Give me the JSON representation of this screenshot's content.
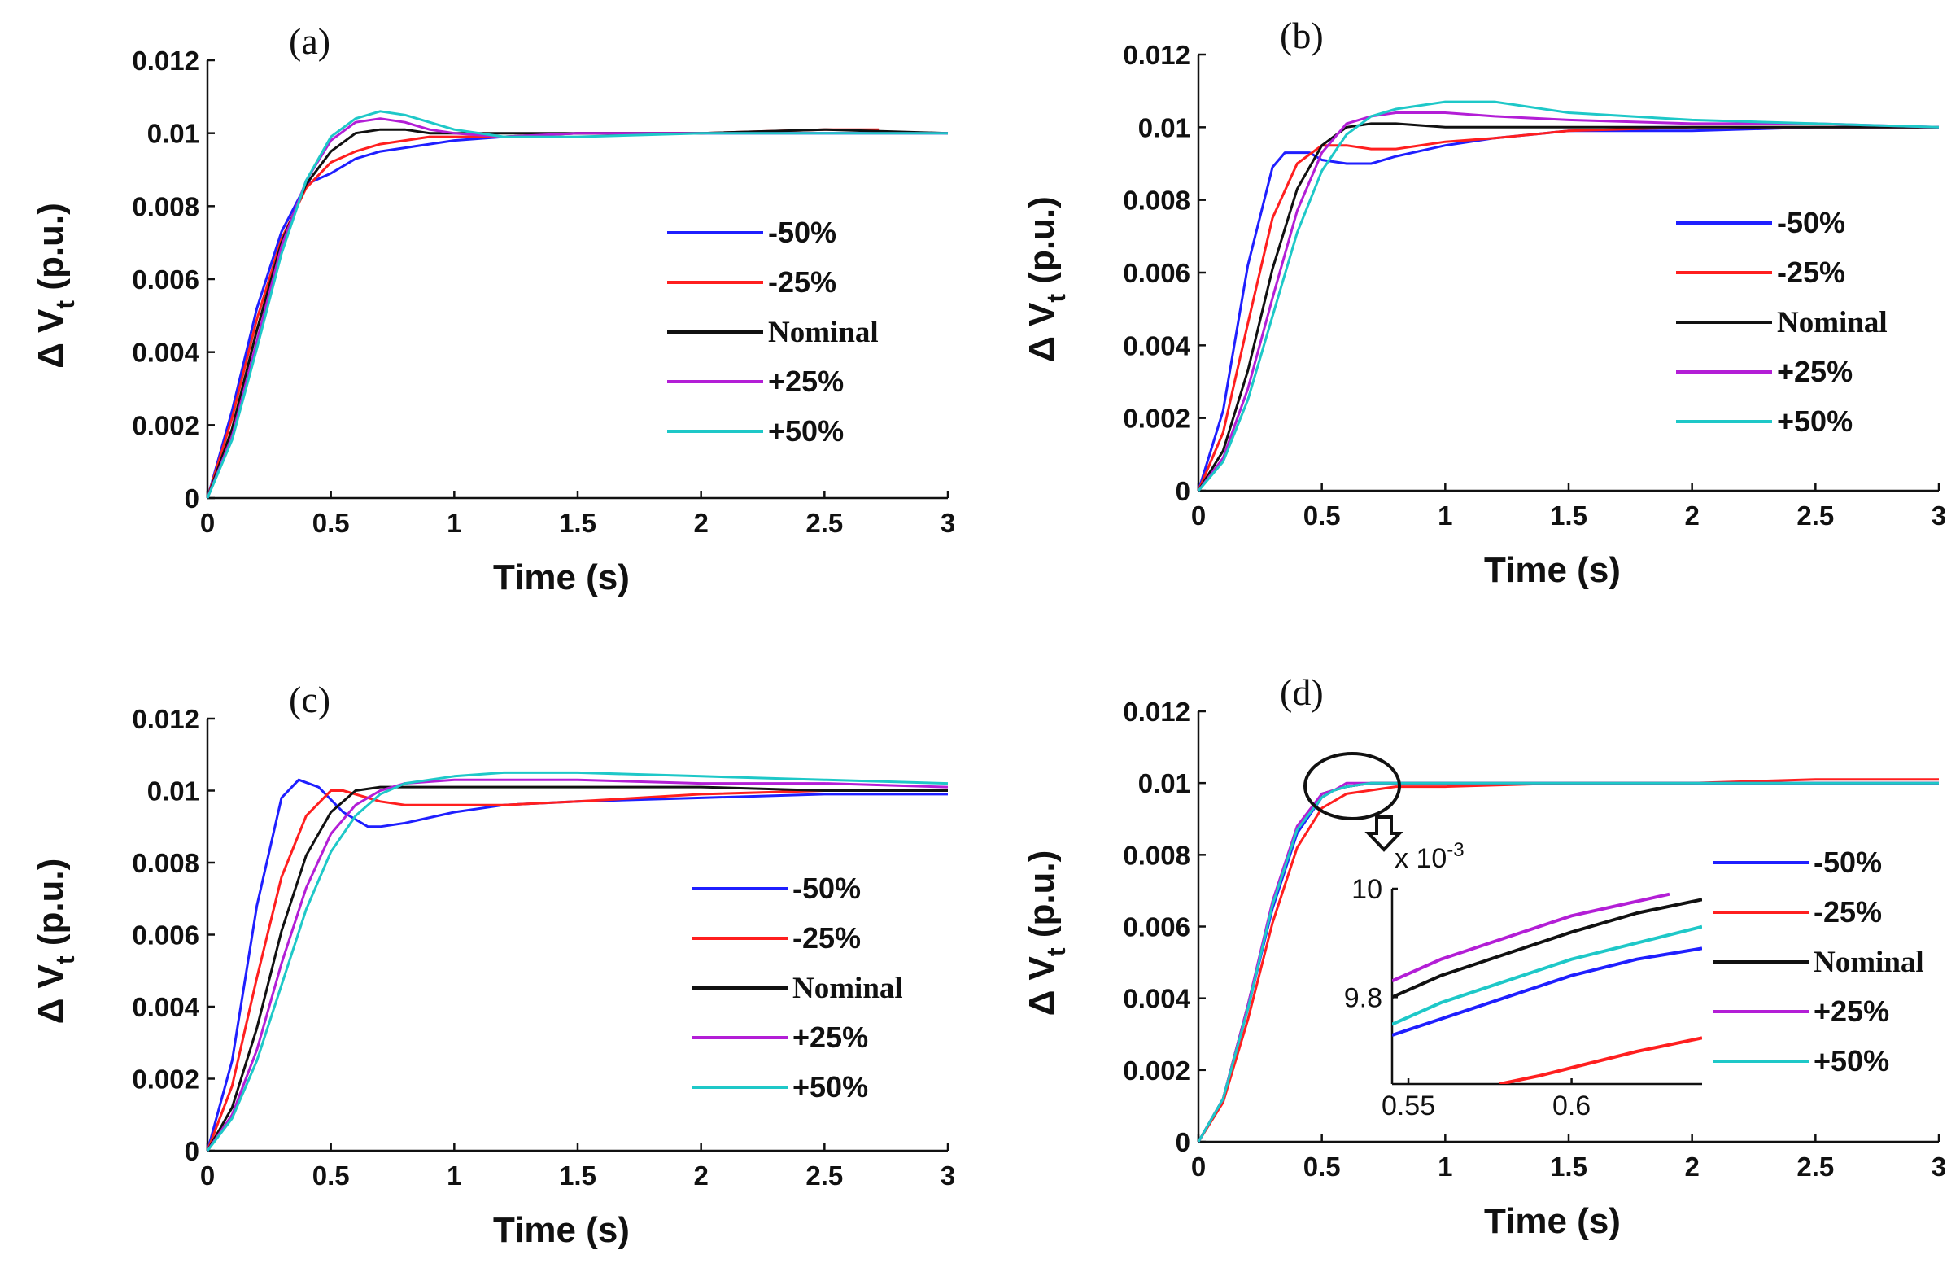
{
  "chart_data": [
    {
      "type": "line",
      "panel": "(a)",
      "xlabel": "Time (s)",
      "ylabel_main": "Δ V",
      "ylabel_sub": "t",
      "ylabel_unit": " (p.u.)",
      "xlim": [
        0,
        3
      ],
      "ylim": [
        0,
        0.012
      ],
      "xticks": [
        0,
        0.5,
        1,
        1.5,
        2,
        2.5,
        3
      ],
      "xtick_labels": [
        "0",
        "0.5",
        "1",
        "1.5",
        "2",
        "2.5",
        "3"
      ],
      "yticks": [
        0,
        0.002,
        0.004,
        0.006,
        0.008,
        0.01,
        0.012
      ],
      "ytick_labels": [
        "0",
        "0.002",
        "0.004",
        "0.006",
        "0.008",
        "0.01",
        "0.012"
      ],
      "legend_position": "center-right",
      "series": [
        {
          "name": "-50%",
          "color": "#1f1fff",
          "x": [
            0,
            0.1,
            0.2,
            0.3,
            0.4,
            0.5,
            0.6,
            0.7,
            0.8,
            0.9,
            1.0,
            1.2,
            1.5,
            2.0,
            2.5,
            3.0
          ],
          "y": [
            0,
            0.0024,
            0.0052,
            0.0073,
            0.0086,
            0.0089,
            0.0093,
            0.0095,
            0.0096,
            0.0097,
            0.0098,
            0.0099,
            0.01,
            0.01,
            0.01,
            0.01
          ]
        },
        {
          "name": "-25%",
          "color": "#ff1f1f",
          "x": [
            0,
            0.1,
            0.2,
            0.3,
            0.4,
            0.5,
            0.6,
            0.7,
            0.8,
            0.9,
            1.0,
            1.2,
            1.5,
            2.0,
            2.5,
            2.72
          ],
          "y": [
            0,
            0.0022,
            0.0049,
            0.0071,
            0.0085,
            0.0092,
            0.0095,
            0.0097,
            0.0098,
            0.0099,
            0.0099,
            0.0099,
            0.01,
            0.01,
            0.0101,
            0.0101
          ]
        },
        {
          "name": "Nominal",
          "color": "#111111",
          "x": [
            0,
            0.1,
            0.2,
            0.3,
            0.4,
            0.5,
            0.6,
            0.7,
            0.8,
            0.9,
            1.0,
            1.2,
            1.5,
            2.0,
            2.5,
            3.0
          ],
          "y": [
            0,
            0.0019,
            0.0046,
            0.007,
            0.0086,
            0.0095,
            0.01,
            0.0101,
            0.0101,
            0.01,
            0.01,
            0.01,
            0.01,
            0.01,
            0.0101,
            0.01
          ]
        },
        {
          "name": "+25%",
          "color": "#b31ed6",
          "x": [
            0,
            0.1,
            0.2,
            0.3,
            0.4,
            0.5,
            0.6,
            0.7,
            0.8,
            0.9,
            1.0,
            1.2,
            1.5,
            2.0,
            2.5,
            3.0
          ],
          "y": [
            0,
            0.0017,
            0.0043,
            0.0069,
            0.0087,
            0.0098,
            0.0103,
            0.0104,
            0.0103,
            0.0101,
            0.01,
            0.0099,
            0.01,
            0.01,
            0.01,
            0.01
          ]
        },
        {
          "name": "+50%",
          "color": "#1ec8c8",
          "x": [
            0,
            0.1,
            0.2,
            0.3,
            0.4,
            0.5,
            0.6,
            0.7,
            0.8,
            0.9,
            1.0,
            1.2,
            1.5,
            2.0,
            2.5,
            3.0
          ],
          "y": [
            0,
            0.0016,
            0.0041,
            0.0067,
            0.0087,
            0.0099,
            0.0104,
            0.0106,
            0.0105,
            0.0103,
            0.0101,
            0.0099,
            0.0099,
            0.01,
            0.01,
            0.01
          ]
        }
      ]
    },
    {
      "type": "line",
      "panel": "(b)",
      "xlabel": "Time (s)",
      "ylabel_main": "Δ V",
      "ylabel_sub": "t",
      "ylabel_unit": " (p.u.)",
      "xlim": [
        0,
        3
      ],
      "ylim": [
        0,
        0.012
      ],
      "xticks": [
        0,
        0.5,
        1,
        1.5,
        2,
        2.5,
        3
      ],
      "xtick_labels": [
        "0",
        "0.5",
        "1",
        "1.5",
        "2",
        "2.5",
        "3"
      ],
      "yticks": [
        0,
        0.002,
        0.004,
        0.006,
        0.008,
        0.01,
        0.012
      ],
      "ytick_labels": [
        "0",
        "0.002",
        "0.004",
        "0.006",
        "0.008",
        "0.01",
        "0.012"
      ],
      "legend_position": "center-right",
      "series": [
        {
          "name": "-50%",
          "color": "#1f1fff",
          "x": [
            0,
            0.1,
            0.2,
            0.3,
            0.35,
            0.45,
            0.5,
            0.6,
            0.7,
            0.8,
            1.0,
            1.2,
            1.5,
            2.0,
            2.5,
            3.0
          ],
          "y": [
            0,
            0.0022,
            0.0062,
            0.0089,
            0.0093,
            0.0093,
            0.0091,
            0.009,
            0.009,
            0.0092,
            0.0095,
            0.0097,
            0.0099,
            0.0099,
            0.01,
            0.01
          ]
        },
        {
          "name": "-25%",
          "color": "#ff1f1f",
          "x": [
            0,
            0.1,
            0.2,
            0.3,
            0.4,
            0.5,
            0.6,
            0.7,
            0.8,
            1.0,
            1.2,
            1.5,
            2.0,
            2.5,
            3.0
          ],
          "y": [
            0,
            0.0016,
            0.0046,
            0.0075,
            0.009,
            0.0095,
            0.0095,
            0.0094,
            0.0094,
            0.0096,
            0.0097,
            0.0099,
            0.01,
            0.01,
            0.01
          ]
        },
        {
          "name": "Nominal",
          "color": "#111111",
          "x": [
            0,
            0.1,
            0.2,
            0.3,
            0.4,
            0.5,
            0.6,
            0.7,
            0.8,
            1.0,
            1.2,
            1.5,
            2.0,
            2.5,
            3.0
          ],
          "y": [
            0,
            0.0011,
            0.0033,
            0.0061,
            0.0083,
            0.0095,
            0.01,
            0.0101,
            0.0101,
            0.01,
            0.01,
            0.01,
            0.01,
            0.01,
            0.01
          ]
        },
        {
          "name": "+25%",
          "color": "#b31ed6",
          "x": [
            0,
            0.1,
            0.2,
            0.3,
            0.4,
            0.5,
            0.6,
            0.7,
            0.8,
            1.0,
            1.2,
            1.5,
            2.0,
            2.5,
            3.0
          ],
          "y": [
            0,
            0.0009,
            0.0028,
            0.0053,
            0.0077,
            0.0093,
            0.0101,
            0.0103,
            0.0104,
            0.0104,
            0.0103,
            0.0102,
            0.0101,
            0.0101,
            0.01
          ]
        },
        {
          "name": "+50%",
          "color": "#1ec8c8",
          "x": [
            0,
            0.1,
            0.2,
            0.3,
            0.4,
            0.5,
            0.6,
            0.7,
            0.8,
            1.0,
            1.2,
            1.5,
            2.0,
            2.5,
            3.0
          ],
          "y": [
            0,
            0.0008,
            0.0025,
            0.0048,
            0.0071,
            0.0088,
            0.0098,
            0.0103,
            0.0105,
            0.0107,
            0.0107,
            0.0104,
            0.0102,
            0.0101,
            0.01
          ]
        }
      ]
    },
    {
      "type": "line",
      "panel": "(c)",
      "xlabel": "Time (s)",
      "ylabel_main": "Δ V",
      "ylabel_sub": "t",
      "ylabel_unit": " (p.u.)",
      "xlim": [
        0,
        3
      ],
      "ylim": [
        0,
        0.012
      ],
      "xticks": [
        0,
        0.5,
        1,
        1.5,
        2,
        2.5,
        3
      ],
      "xtick_labels": [
        "0",
        "0.5",
        "1",
        "1.5",
        "2",
        "2.5",
        "3"
      ],
      "yticks": [
        0,
        0.002,
        0.004,
        0.006,
        0.008,
        0.01,
        0.012
      ],
      "ytick_labels": [
        "0",
        "0.002",
        "0.004",
        "0.006",
        "0.008",
        "0.01",
        "0.012"
      ],
      "legend_position": "center-right",
      "series": [
        {
          "name": "-50%",
          "color": "#1f1fff",
          "x": [
            0,
            0.1,
            0.2,
            0.3,
            0.37,
            0.45,
            0.55,
            0.65,
            0.7,
            0.8,
            1.0,
            1.2,
            1.5,
            2.0,
            2.5,
            3.0
          ],
          "y": [
            0,
            0.0025,
            0.0068,
            0.0098,
            0.0103,
            0.0101,
            0.0094,
            0.009,
            0.009,
            0.0091,
            0.0094,
            0.0096,
            0.0097,
            0.0098,
            0.0099,
            0.0099
          ]
        },
        {
          "name": "-25%",
          "color": "#ff1f1f",
          "x": [
            0,
            0.1,
            0.2,
            0.3,
            0.4,
            0.5,
            0.55,
            0.7,
            0.8,
            1.0,
            1.2,
            1.5,
            2.0,
            2.5,
            3.0
          ],
          "y": [
            0,
            0.0018,
            0.0048,
            0.0076,
            0.0093,
            0.01,
            0.01,
            0.0097,
            0.0096,
            0.0096,
            0.0096,
            0.0097,
            0.0099,
            0.01,
            0.01
          ]
        },
        {
          "name": "Nominal",
          "color": "#111111",
          "x": [
            0,
            0.1,
            0.2,
            0.3,
            0.4,
            0.5,
            0.6,
            0.7,
            0.8,
            1.0,
            1.2,
            1.5,
            2.0,
            2.5,
            3.0
          ],
          "y": [
            0,
            0.0012,
            0.0034,
            0.0061,
            0.0082,
            0.0094,
            0.01,
            0.0101,
            0.0101,
            0.0101,
            0.0101,
            0.0101,
            0.0101,
            0.01,
            0.01
          ]
        },
        {
          "name": "+25%",
          "color": "#b31ed6",
          "x": [
            0,
            0.1,
            0.2,
            0.3,
            0.4,
            0.5,
            0.6,
            0.7,
            0.8,
            1.0,
            1.2,
            1.5,
            2.0,
            2.5,
            3.0
          ],
          "y": [
            0,
            0.001,
            0.0028,
            0.0052,
            0.0073,
            0.0088,
            0.0096,
            0.01,
            0.0102,
            0.0103,
            0.0103,
            0.0103,
            0.0102,
            0.0102,
            0.0101
          ]
        },
        {
          "name": "+50%",
          "color": "#1ec8c8",
          "x": [
            0,
            0.1,
            0.2,
            0.3,
            0.4,
            0.5,
            0.6,
            0.7,
            0.8,
            1.0,
            1.2,
            1.5,
            2.0,
            2.5,
            3.0
          ],
          "y": [
            0,
            0.0009,
            0.0025,
            0.0046,
            0.0067,
            0.0083,
            0.0093,
            0.0099,
            0.0102,
            0.0104,
            0.0105,
            0.0105,
            0.0104,
            0.0103,
            0.0102
          ]
        }
      ]
    },
    {
      "type": "line",
      "panel": "(d)",
      "xlabel": "Time (s)",
      "ylabel_main": "Δ V",
      "ylabel_sub": "t",
      "ylabel_unit": " (p.u.)",
      "xlim": [
        0,
        3
      ],
      "ylim": [
        0,
        0.012
      ],
      "xticks": [
        0,
        0.5,
        1,
        1.5,
        2,
        2.5,
        3
      ],
      "xtick_labels": [
        "0",
        "0.5",
        "1",
        "1.5",
        "2",
        "2.5",
        "3"
      ],
      "yticks": [
        0,
        0.002,
        0.004,
        0.006,
        0.008,
        0.01,
        0.012
      ],
      "ytick_labels": [
        "0",
        "0.002",
        "0.004",
        "0.006",
        "0.008",
        "0.01",
        "0.012"
      ],
      "legend_position": "center-right",
      "series": [
        {
          "name": "-50%",
          "color": "#1f1fff",
          "x": [
            0,
            0.1,
            0.2,
            0.3,
            0.4,
            0.5,
            0.55,
            0.6,
            0.7,
            0.8,
            1.0,
            1.5,
            2.0,
            2.5,
            3.0
          ],
          "y": [
            0,
            0.0012,
            0.0037,
            0.0065,
            0.0086,
            0.0096,
            0.0098,
            0.0099,
            0.01,
            0.01,
            0.01,
            0.01,
            0.01,
            0.01,
            0.01
          ]
        },
        {
          "name": "-25%",
          "color": "#ff1f1f",
          "x": [
            0,
            0.1,
            0.2,
            0.3,
            0.4,
            0.5,
            0.6,
            0.7,
            0.8,
            1.0,
            1.5,
            2.0,
            2.5,
            3.0
          ],
          "y": [
            0,
            0.0011,
            0.0034,
            0.0061,
            0.0082,
            0.0093,
            0.0097,
            0.0098,
            0.0099,
            0.0099,
            0.01,
            0.01,
            0.0101,
            0.0101
          ]
        },
        {
          "name": "Nominal",
          "color": "#111111",
          "x": [
            0,
            0.1,
            0.2,
            0.3,
            0.4,
            0.5,
            0.55,
            0.6,
            0.7,
            0.8,
            1.0,
            1.5,
            2.0,
            2.5,
            3.0
          ],
          "y": [
            0,
            0.0012,
            0.0038,
            0.0066,
            0.0087,
            0.0097,
            0.0098,
            0.0099,
            0.01,
            0.01,
            0.01,
            0.01,
            0.01,
            0.01,
            0.01
          ]
        },
        {
          "name": "+25%",
          "color": "#b31ed6",
          "x": [
            0,
            0.1,
            0.2,
            0.3,
            0.4,
            0.5,
            0.55,
            0.6,
            0.7,
            0.8,
            1.0,
            1.5,
            2.0,
            2.5,
            3.0
          ],
          "y": [
            0,
            0.0012,
            0.0038,
            0.0067,
            0.0088,
            0.0097,
            0.0098,
            0.01,
            0.01,
            0.01,
            0.01,
            0.01,
            0.01,
            0.01,
            0.01
          ]
        },
        {
          "name": "+50%",
          "color": "#1ec8c8",
          "x": [
            0,
            0.1,
            0.2,
            0.3,
            0.4,
            0.5,
            0.55,
            0.6,
            0.7,
            0.8,
            1.0,
            1.5,
            2.0,
            2.5,
            3.0
          ],
          "y": [
            0,
            0.0012,
            0.0037,
            0.0066,
            0.0087,
            0.0096,
            0.0098,
            0.0099,
            0.01,
            0.01,
            0.01,
            0.01,
            0.01,
            0.01,
            0.01
          ]
        }
      ],
      "inset": {
        "xlim": [
          0.545,
          0.64
        ],
        "ylim": [
          9.64,
          10.0
        ],
        "xticks": [
          0.55,
          0.6
        ],
        "xtick_labels": [
          "0.55",
          "0.6"
        ],
        "yticks": [
          9.8,
          10
        ],
        "ytick_labels": [
          "9.8",
          "10"
        ],
        "exponent_label": "x 10",
        "exponent_power": "-3",
        "series": [
          {
            "name": "-50%",
            "color": "#1f1fff",
            "x": [
              0.545,
              0.56,
              0.58,
              0.6,
              0.62,
              0.64
            ],
            "y": [
              9.73,
              9.76,
              9.8,
              9.84,
              9.87,
              9.89
            ]
          },
          {
            "name": "-25%",
            "color": "#ff1f1f",
            "x": [
              0.578,
              0.59,
              0.6,
              0.61,
              0.62,
              0.64
            ],
            "y": [
              9.64,
              9.655,
              9.67,
              9.685,
              9.7,
              9.725
            ]
          },
          {
            "name": "Nominal",
            "color": "#111111",
            "x": [
              0.545,
              0.56,
              0.58,
              0.6,
              0.62,
              0.64
            ],
            "y": [
              9.8,
              9.84,
              9.88,
              9.92,
              9.955,
              9.98
            ]
          },
          {
            "name": "+25%",
            "color": "#b31ed6",
            "x": [
              0.545,
              0.56,
              0.58,
              0.6,
              0.615,
              0.63
            ],
            "y": [
              9.83,
              9.87,
              9.91,
              9.95,
              9.97,
              9.99
            ]
          },
          {
            "name": "+50%",
            "color": "#1ec8c8",
            "x": [
              0.545,
              0.56,
              0.58,
              0.6,
              0.62,
              0.64
            ],
            "y": [
              9.75,
              9.79,
              9.83,
              9.87,
              9.9,
              9.93
            ]
          }
        ]
      }
    }
  ]
}
